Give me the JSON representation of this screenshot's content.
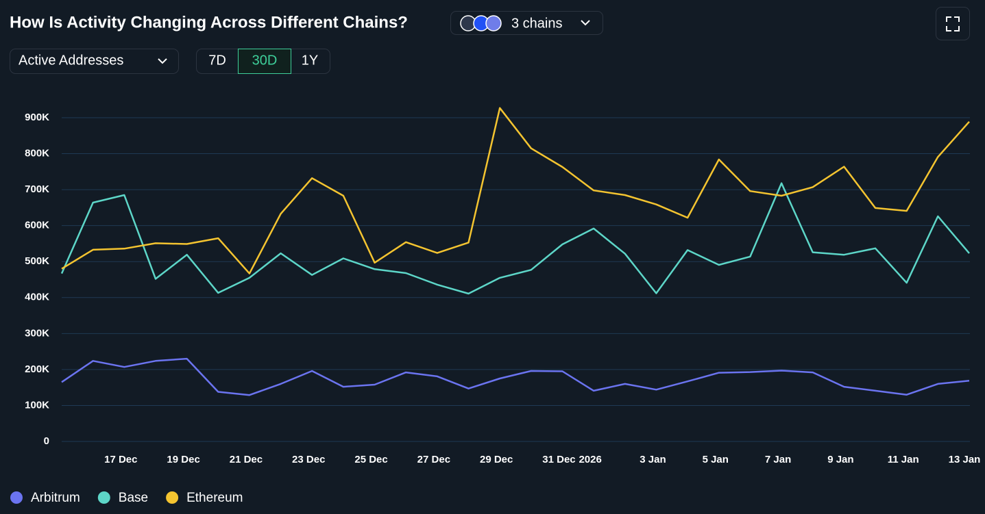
{
  "controls": {
    "chain_selector": "3 chains",
    "metric": "Active Addresses",
    "ranges": [
      "7D",
      "30D",
      "1Y"
    ]
  },
  "chart_data": {
    "type": "line",
    "title": "How Is Activity Changing Across Different Chains?",
    "categories": [
      null,
      null,
      "17 Dec",
      null,
      "19 Dec",
      null,
      "21 Dec",
      null,
      "23 Dec",
      null,
      "25 Dec",
      null,
      "27 Dec",
      null,
      "29 Dec",
      null,
      "31 Dec",
      "2026",
      null,
      "3 Jan",
      null,
      "5 Jan",
      null,
      "7 Jan",
      null,
      "9 Jan",
      null,
      "11 Jan",
      null,
      "13 Jan"
    ],
    "series": [
      {
        "name": "Arbitrum",
        "color": "#6b74f0",
        "values": [
          165000,
          224000,
          207000,
          224000,
          230000,
          138000,
          129000,
          160000,
          196000,
          152000,
          158000,
          192000,
          181000,
          147000,
          175000,
          196000,
          195000,
          141000,
          160000,
          144000,
          167000,
          191000,
          193000,
          197000,
          192000,
          152000,
          141000,
          130000,
          160000,
          169000
        ]
      },
      {
        "name": "Base",
        "color": "#5dd6c8",
        "values": [
          467000,
          664000,
          685000,
          452000,
          519000,
          413000,
          455000,
          523000,
          463000,
          509000,
          479000,
          468000,
          436000,
          411000,
          455000,
          477000,
          548000,
          592000,
          522000,
          412000,
          532000,
          491000,
          514000,
          718000,
          526000,
          519000,
          537000,
          441000,
          626000,
          523000
        ]
      },
      {
        "name": "Ethereum",
        "color": "#f4c430",
        "values": [
          480000,
          533000,
          536000,
          551000,
          549000,
          565000,
          467000,
          633000,
          732000,
          683000,
          497000,
          554000,
          524000,
          553000,
          927000,
          815000,
          763000,
          698000,
          685000,
          659000,
          622000,
          784000,
          696000,
          683000,
          707000,
          764000,
          649000,
          641000,
          791000,
          889000
        ]
      }
    ],
    "ylim": [
      0,
      900000
    ],
    "yticks": [
      0,
      {
        "value": 100000,
        "label": "100K"
      },
      {
        "value": 200000,
        "label": "200K"
      },
      {
        "value": 300000,
        "label": "300K"
      },
      {
        "value": 400000,
        "label": "400K"
      },
      {
        "value": 500000,
        "label": "500K"
      },
      {
        "value": 600000,
        "label": "600K"
      },
      {
        "value": 700000,
        "label": "700K"
      },
      {
        "value": 800000,
        "label": "800K"
      },
      {
        "value": 900000,
        "label": "900K"
      }
    ],
    "grid": true
  }
}
